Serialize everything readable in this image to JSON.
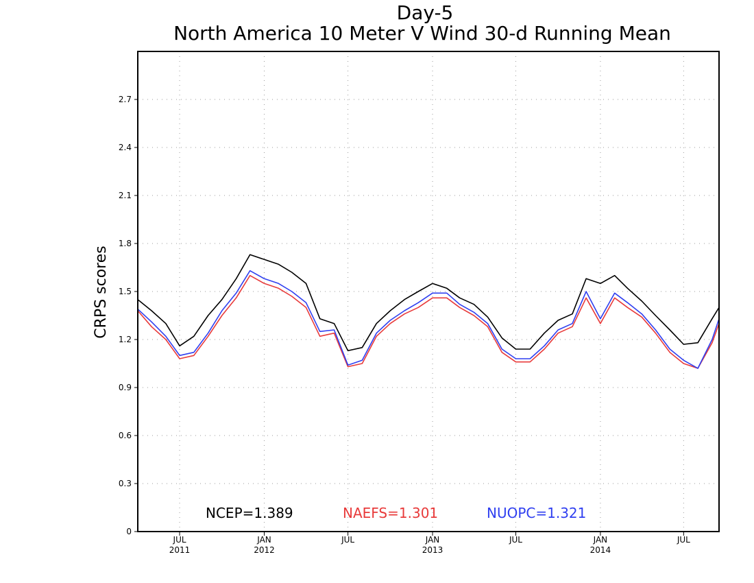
{
  "chart_data": {
    "type": "line",
    "title": "Day-5",
    "subtitle": "North America 10 Meter V Wind 30-d Running Mean",
    "xlabel": "",
    "ylabel": "CRPS scores",
    "ylim": [
      0,
      3.0
    ],
    "yticks": [
      0,
      0.3,
      0.6,
      0.9,
      1.2,
      1.5,
      1.8,
      2.1,
      2.4,
      2.7
    ],
    "ytick_labels": [
      "0",
      "0.3",
      "0.6",
      "0.9",
      "1.2",
      "1.5",
      "1.8",
      "2.1",
      "2.4",
      "2.7"
    ],
    "xlim": [
      "2011-04-01",
      "2014-09-16"
    ],
    "xticks": [
      {
        "date": "2011-07-01",
        "label": "JUL",
        "year": "2011"
      },
      {
        "date": "2012-01-01",
        "label": "JAN",
        "year": "2012"
      },
      {
        "date": "2012-07-01",
        "label": "JUL",
        "year": ""
      },
      {
        "date": "2013-01-01",
        "label": "JAN",
        "year": "2013"
      },
      {
        "date": "2013-07-01",
        "label": "JUL",
        "year": ""
      },
      {
        "date": "2014-01-01",
        "label": "JAN",
        "year": "2014"
      },
      {
        "date": "2014-07-01",
        "label": "JUL",
        "year": ""
      }
    ],
    "grid": true,
    "legend_position": "bottom",
    "x": [
      "2011-04-01",
      "2011-05-01",
      "2011-06-01",
      "2011-07-01",
      "2011-08-01",
      "2011-09-01",
      "2011-10-01",
      "2011-11-01",
      "2011-12-01",
      "2012-01-01",
      "2012-02-01",
      "2012-03-01",
      "2012-04-01",
      "2012-05-01",
      "2012-06-01",
      "2012-07-01",
      "2012-08-01",
      "2012-09-01",
      "2012-10-01",
      "2012-11-01",
      "2012-12-01",
      "2013-01-01",
      "2013-02-01",
      "2013-03-01",
      "2013-04-01",
      "2013-05-01",
      "2013-06-01",
      "2013-07-01",
      "2013-08-01",
      "2013-09-01",
      "2013-10-01",
      "2013-11-01",
      "2013-12-01",
      "2014-01-01",
      "2014-02-01",
      "2014-03-01",
      "2014-04-01",
      "2014-05-01",
      "2014-06-01",
      "2014-07-01",
      "2014-08-01",
      "2014-09-01",
      "2014-09-16"
    ],
    "series": [
      {
        "name": "NCEP",
        "color": "#000000",
        "mean_label": "NCEP=1.389",
        "values": [
          1.45,
          1.38,
          1.3,
          1.16,
          1.22,
          1.35,
          1.45,
          1.58,
          1.73,
          1.7,
          1.67,
          1.62,
          1.55,
          1.33,
          1.3,
          1.13,
          1.15,
          1.3,
          1.38,
          1.45,
          1.5,
          1.55,
          1.52,
          1.46,
          1.42,
          1.34,
          1.21,
          1.14,
          1.14,
          1.24,
          1.32,
          1.36,
          1.58,
          1.55,
          1.6,
          1.52,
          1.44,
          1.35,
          1.26,
          1.17,
          1.18,
          1.33,
          1.4
        ]
      },
      {
        "name": "NAEFS",
        "color": "#e83a3a",
        "mean_label": "NAEFS=1.301",
        "values": [
          1.38,
          1.28,
          1.2,
          1.08,
          1.1,
          1.22,
          1.35,
          1.46,
          1.6,
          1.55,
          1.52,
          1.47,
          1.4,
          1.22,
          1.24,
          1.03,
          1.05,
          1.22,
          1.3,
          1.36,
          1.4,
          1.46,
          1.46,
          1.4,
          1.35,
          1.28,
          1.12,
          1.06,
          1.06,
          1.14,
          1.24,
          1.28,
          1.46,
          1.3,
          1.46,
          1.4,
          1.34,
          1.24,
          1.12,
          1.05,
          1.02,
          1.18,
          1.3
        ]
      },
      {
        "name": "NUOPC",
        "color": "#2f3ff0",
        "mean_label": "NUOPC=1.321",
        "values": [
          1.39,
          1.31,
          1.22,
          1.1,
          1.12,
          1.24,
          1.38,
          1.49,
          1.63,
          1.58,
          1.55,
          1.5,
          1.43,
          1.25,
          1.26,
          1.04,
          1.07,
          1.24,
          1.32,
          1.38,
          1.43,
          1.49,
          1.49,
          1.42,
          1.37,
          1.3,
          1.14,
          1.08,
          1.08,
          1.16,
          1.26,
          1.3,
          1.5,
          1.33,
          1.49,
          1.43,
          1.36,
          1.26,
          1.14,
          1.07,
          1.02,
          1.2,
          1.33
        ]
      }
    ]
  }
}
